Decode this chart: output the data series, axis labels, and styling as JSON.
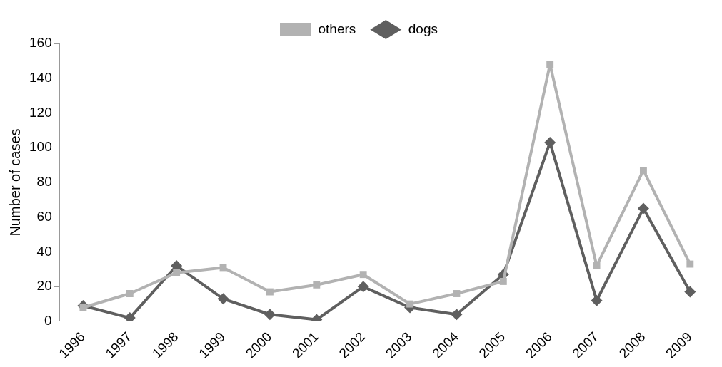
{
  "chart_data": {
    "type": "line",
    "ylabel": "Number of cases",
    "categories": [
      "1996",
      "1997",
      "1998",
      "1999",
      "2000",
      "2001",
      "2002",
      "2003",
      "2004",
      "2005",
      "2006",
      "2007",
      "2008",
      "2009"
    ],
    "series": [
      {
        "name": "dogs",
        "color": "#5f5f5f",
        "marker": "diamond",
        "values": [
          9,
          2,
          32,
          13,
          4,
          1,
          20,
          8,
          4,
          27,
          103,
          12,
          65,
          17
        ]
      },
      {
        "name": "others",
        "color": "#b2b2b2",
        "marker": "square",
        "values": [
          8,
          16,
          28,
          31,
          17,
          21,
          27,
          10,
          16,
          23,
          148,
          32,
          87,
          33
        ]
      }
    ],
    "ylim": [
      0,
      160
    ],
    "yticks": [
      0,
      20,
      40,
      60,
      80,
      100,
      120,
      140,
      160
    ],
    "grid": false,
    "legend": "top"
  }
}
